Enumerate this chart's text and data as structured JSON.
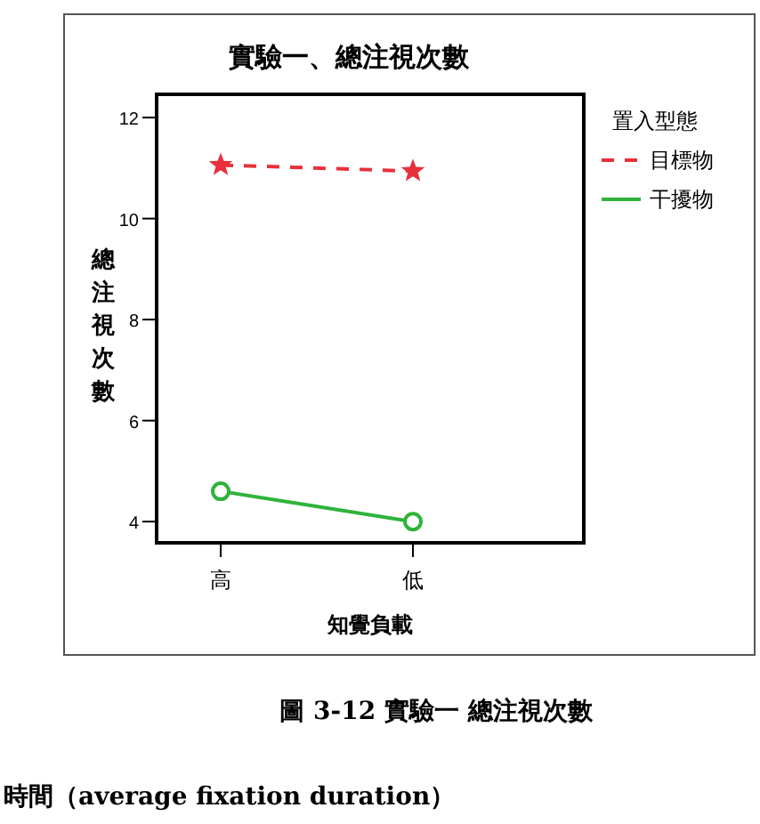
{
  "chart_data": {
    "type": "line",
    "title": "實驗一、總注視次數",
    "xlabel": "知覺負載",
    "ylabel": "總注視次數",
    "legend_title": "置入型態",
    "categories": [
      "高",
      "低"
    ],
    "series": [
      {
        "name": "目標物",
        "color": "#e8303a",
        "values": [
          11.06,
          10.94
        ],
        "marker": "star",
        "line_style": "dashed"
      },
      {
        "name": "干擾物",
        "color": "#2fb33a",
        "values": [
          4.6,
          4.0
        ],
        "marker": "circle",
        "line_style": "solid"
      }
    ],
    "ylim": [
      3.58,
      12.46
    ],
    "yticks": [
      4,
      6,
      8,
      10,
      12
    ],
    "grid": false,
    "legend": "top right",
    "annotations": [
      "圖 3-12 實驗一 總注視次數",
      "時間（average fixation duration）"
    ]
  }
}
